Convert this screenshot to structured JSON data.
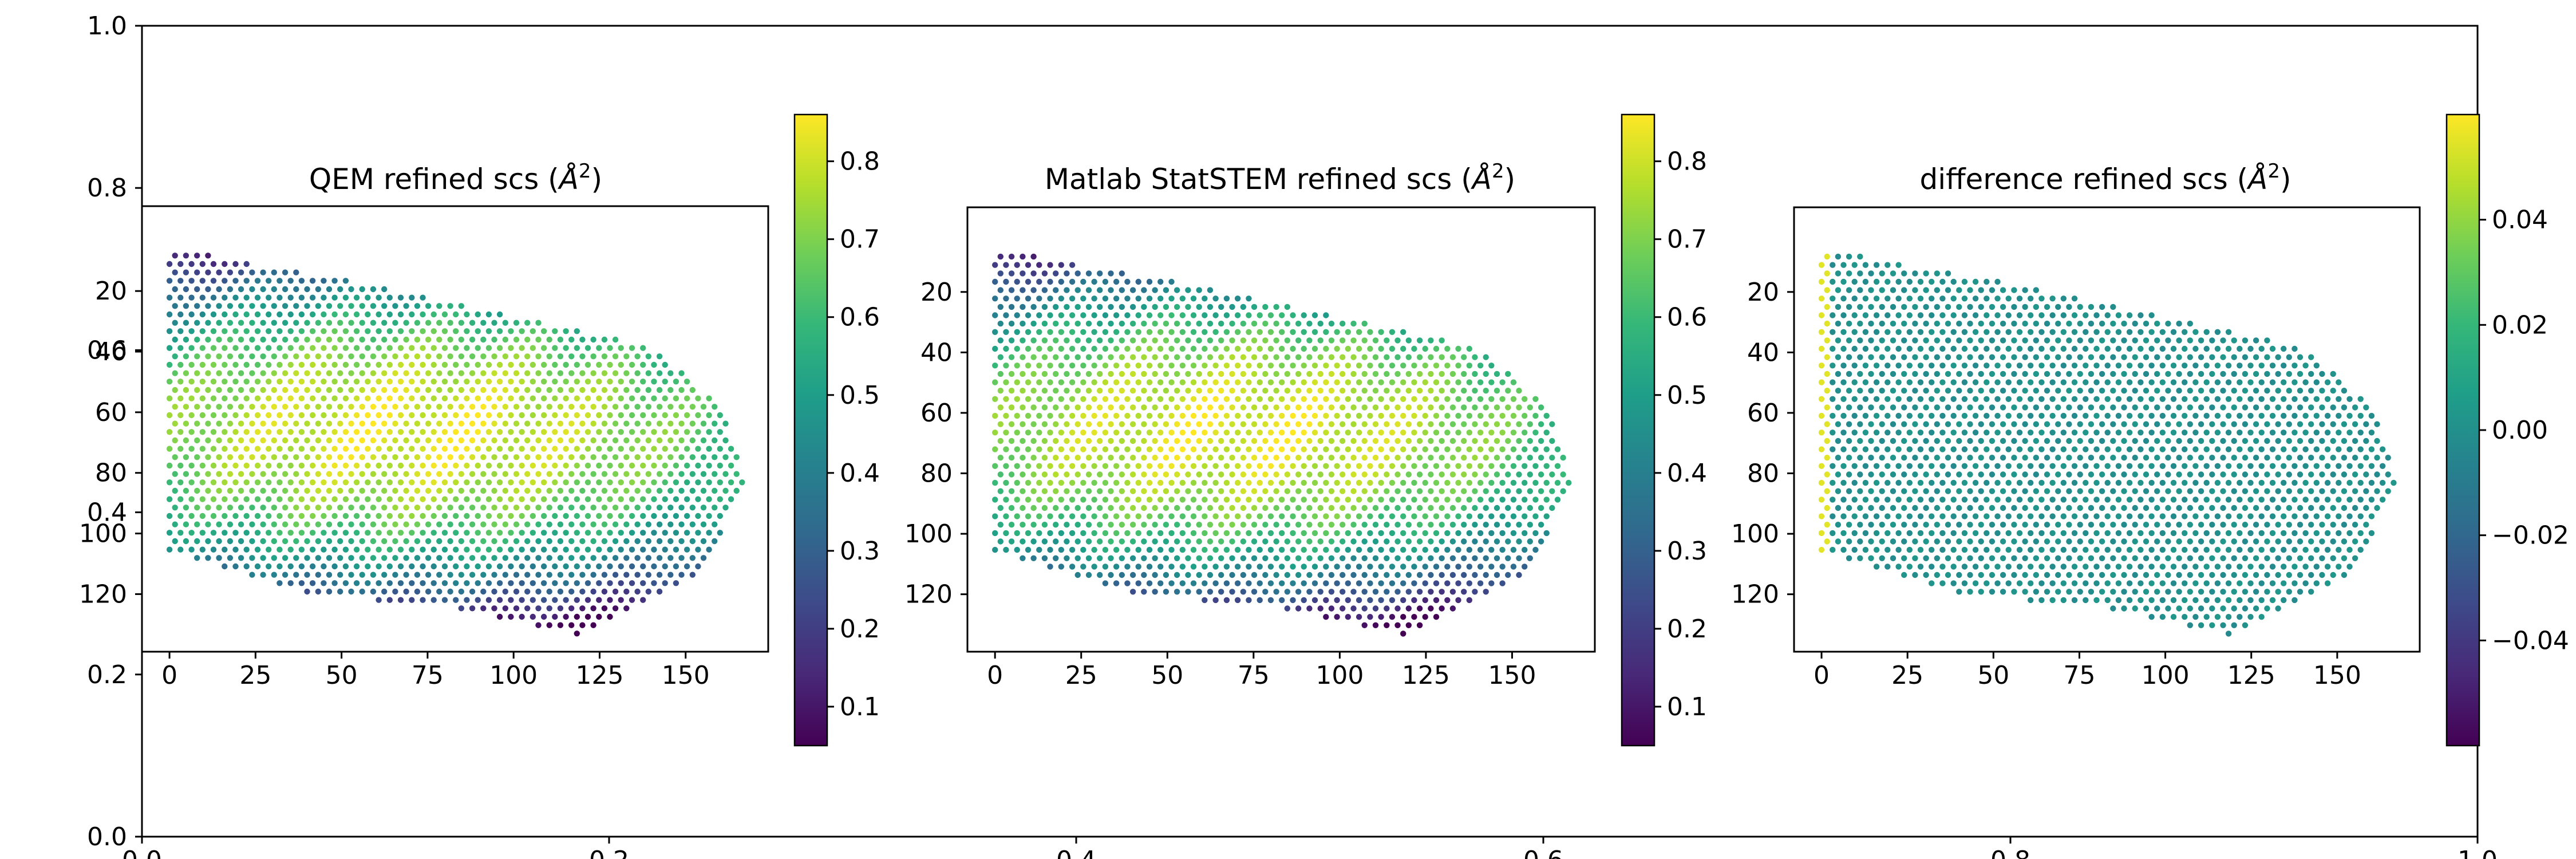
{
  "figure": {
    "background_axes": {
      "x_ticks": [
        "0.0",
        "0.2",
        "0.4",
        "0.6",
        "0.8",
        "1.0"
      ],
      "y_ticks": [
        "0.0",
        "0.2",
        "0.4",
        "0.6",
        "0.8",
        "1.0"
      ]
    },
    "colormap": "viridis",
    "colormap_stops": [
      "#440154",
      "#482878",
      "#3e4989",
      "#31688e",
      "#26828e",
      "#1f9e89",
      "#35b779",
      "#6ece58",
      "#b5de2b",
      "#fde725"
    ]
  },
  "chart_data": [
    {
      "type": "scatter",
      "title": "QEM refined scs (Å²)",
      "title_main": "QEM refined scs (",
      "title_unit": "Å",
      "title_exp": "2",
      "title_close": ")",
      "xlim": [
        -8,
        174
      ],
      "ylim": [
        -8,
        139
      ],
      "y_inverted": true,
      "x_tick_labels": [
        "0",
        "25",
        "50",
        "75",
        "100",
        "125",
        "150"
      ],
      "y_tick_labels": [
        "20",
        "40",
        "60",
        "80",
        "100",
        "120"
      ],
      "point_grid_spacing": 3.2,
      "region_polygon_xy": [
        [
          0,
          6
        ],
        [
          60,
          18
        ],
        [
          140,
          38
        ],
        [
          160,
          58
        ],
        [
          167,
          82
        ],
        [
          160,
          100
        ],
        [
          155,
          112
        ],
        [
          120,
          134
        ],
        [
          80,
          124
        ],
        [
          40,
          120
        ],
        [
          0,
          106
        ]
      ],
      "value_field": "scs_intensity",
      "colorbar": {
        "range": [
          0.05,
          0.86
        ],
        "tick_labels": [
          "0.1",
          "0.2",
          "0.3",
          "0.4",
          "0.5",
          "0.6",
          "0.7",
          "0.8"
        ]
      }
    },
    {
      "type": "scatter",
      "title": "Matlab StatSTEM refined scs (Å²)",
      "title_main": "Matlab StatSTEM refined scs (",
      "title_unit": "Å",
      "title_exp": "2",
      "title_close": ")",
      "xlim": [
        -8,
        174
      ],
      "ylim": [
        -8,
        139
      ],
      "y_inverted": true,
      "x_tick_labels": [
        "0",
        "25",
        "50",
        "75",
        "100",
        "125",
        "150"
      ],
      "y_tick_labels": [
        "20",
        "40",
        "60",
        "80",
        "100",
        "120"
      ],
      "point_grid_spacing": 3.2,
      "region_polygon_xy": [
        [
          0,
          6
        ],
        [
          60,
          18
        ],
        [
          140,
          38
        ],
        [
          160,
          58
        ],
        [
          167,
          82
        ],
        [
          160,
          100
        ],
        [
          155,
          112
        ],
        [
          120,
          134
        ],
        [
          80,
          124
        ],
        [
          40,
          120
        ],
        [
          0,
          106
        ]
      ],
      "value_field": "scs_intensity",
      "colorbar": {
        "range": [
          0.05,
          0.86
        ],
        "tick_labels": [
          "0.1",
          "0.2",
          "0.3",
          "0.4",
          "0.5",
          "0.6",
          "0.7",
          "0.8"
        ]
      }
    },
    {
      "type": "scatter",
      "title": "difference refined scs (Å²)",
      "title_main": "difference refined scs (",
      "title_unit": "Å",
      "title_exp": "2",
      "title_close": ")",
      "xlim": [
        -8,
        174
      ],
      "ylim": [
        -8,
        139
      ],
      "y_inverted": true,
      "x_tick_labels": [
        "0",
        "25",
        "50",
        "75",
        "100",
        "125",
        "150"
      ],
      "y_tick_labels": [
        "20",
        "40",
        "60",
        "80",
        "100",
        "120"
      ],
      "point_grid_spacing": 3.2,
      "region_polygon_xy": [
        [
          0,
          6
        ],
        [
          60,
          18
        ],
        [
          140,
          38
        ],
        [
          160,
          58
        ],
        [
          167,
          82
        ],
        [
          160,
          100
        ],
        [
          155,
          112
        ],
        [
          120,
          134
        ],
        [
          80,
          124
        ],
        [
          40,
          120
        ],
        [
          0,
          106
        ]
      ],
      "value_field": "difference",
      "colorbar": {
        "range": [
          -0.06,
          0.06
        ],
        "tick_labels": [
          "0.04",
          "0.02",
          "0.00",
          "−0.02",
          "−0.04"
        ]
      }
    }
  ]
}
